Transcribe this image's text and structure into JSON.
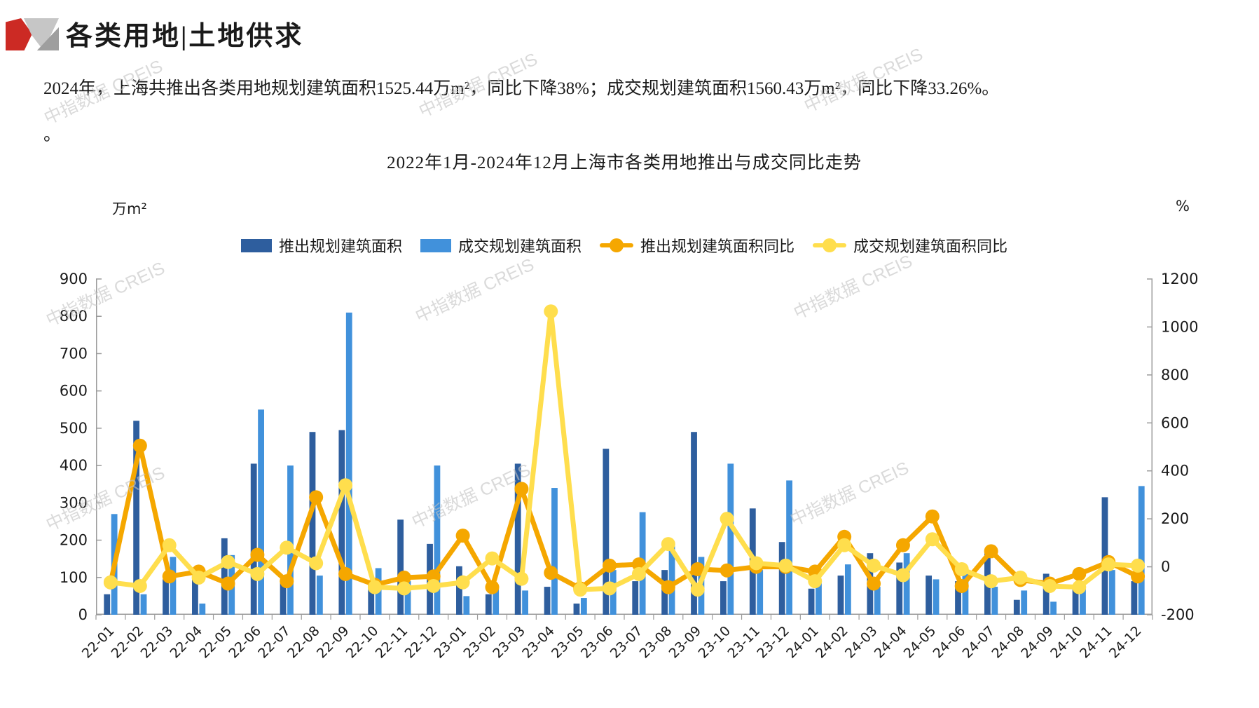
{
  "header": {
    "title": "各类用地|土地供求"
  },
  "description": {
    "line1": "2024年，上海共推出各类用地规划建筑面积1525.44万m²，同比下降38%；成交规划建筑面积1560.43万m²，同比下降33.26%。",
    "line2": "。"
  },
  "watermark": "中指数据 CREIS",
  "chart_data": {
    "type": "bar",
    "title": "2022年1月-2024年12月上海市各类用地推出与成交同比走势",
    "left_axis": {
      "unit": "万m²",
      "min": 0,
      "max": 900,
      "step": 100
    },
    "right_axis": {
      "unit": "%",
      "min": -200,
      "max": 1200,
      "step": 200
    },
    "grid": false,
    "legend_position": "top",
    "categories": [
      "22-01",
      "22-02",
      "22-03",
      "22-04",
      "22-05",
      "22-06",
      "22-07",
      "22-08",
      "22-09",
      "22-10",
      "22-11",
      "22-12",
      "23-01",
      "23-02",
      "23-03",
      "23-04",
      "23-05",
      "23-06",
      "23-07",
      "23-08",
      "23-09",
      "23-10",
      "23-11",
      "23-12",
      "24-01",
      "24-02",
      "24-03",
      "24-04",
      "24-05",
      "24-06",
      "24-07",
      "24-08",
      "24-09",
      "24-10",
      "24-11",
      "24-12"
    ],
    "series": [
      {
        "name": "推出规划建筑面积",
        "type": "bar",
        "axis": "left",
        "color": "#2E5E9E",
        "values": [
          55,
          520,
          95,
          95,
          205,
          405,
          90,
          490,
          495,
          75,
          255,
          190,
          130,
          55,
          405,
          75,
          30,
          445,
          90,
          120,
          490,
          90,
          285,
          195,
          70,
          105,
          165,
          140,
          105,
          90,
          165,
          40,
          110,
          70,
          315,
          90
        ]
      },
      {
        "name": "成交规划建筑面积",
        "type": "bar",
        "axis": "left",
        "color": "#4191DB",
        "values": [
          270,
          55,
          155,
          30,
          160,
          550,
          400,
          105,
          810,
          125,
          90,
          400,
          50,
          70,
          65,
          340,
          45,
          120,
          275,
          195,
          155,
          405,
          120,
          360,
          85,
          135,
          75,
          165,
          95,
          110,
          75,
          65,
          35,
          70,
          120,
          345
        ]
      },
      {
        "name": "推出规划建筑面积同比",
        "type": "line",
        "axis": "right",
        "color": "#F5A700",
        "values": [
          -65,
          505,
          -40,
          -20,
          -70,
          50,
          -60,
          290,
          -30,
          -75,
          -45,
          -40,
          130,
          -85,
          325,
          -25,
          -90,
          5,
          10,
          -85,
          -10,
          -15,
          0,
          0,
          -20,
          125,
          -70,
          90,
          210,
          -80,
          65,
          -55,
          -70,
          -30,
          20,
          -40
        ]
      },
      {
        "name": "成交规划建筑面积同比",
        "type": "line",
        "axis": "right",
        "color": "#FFDE4D",
        "values": [
          -65,
          -80,
          90,
          -45,
          20,
          -30,
          80,
          15,
          340,
          -85,
          -90,
          -80,
          -65,
          35,
          -50,
          1065,
          -95,
          -90,
          -30,
          95,
          -95,
          200,
          15,
          5,
          -60,
          90,
          5,
          -35,
          115,
          -10,
          -60,
          -45,
          -80,
          -85,
          10,
          5
        ]
      }
    ]
  }
}
